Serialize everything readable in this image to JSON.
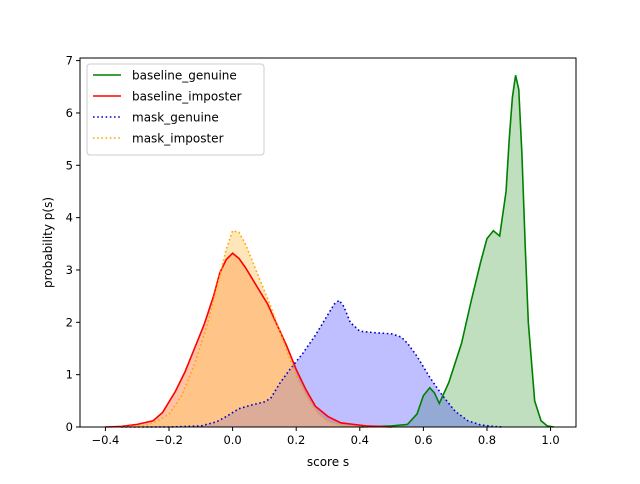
{
  "chart_data": {
    "type": "area",
    "title": "",
    "xlabel": "score s",
    "ylabel": "probability p(s)",
    "xlim": [
      -0.48,
      1.08
    ],
    "ylim": [
      0,
      7.05
    ],
    "xticks": [
      -0.4,
      -0.2,
      0.0,
      0.2,
      0.4,
      0.6,
      0.8,
      1.0
    ],
    "xtick_labels": [
      "−0.4",
      "−0.2",
      "0.0",
      "0.2",
      "0.4",
      "0.6",
      "0.8",
      "1.0"
    ],
    "yticks": [
      0,
      1,
      2,
      3,
      4,
      5,
      6,
      7
    ],
    "ytick_labels": [
      "0",
      "1",
      "2",
      "3",
      "4",
      "5",
      "6",
      "7"
    ],
    "grid": false,
    "legend_position": "top-left",
    "series": [
      {
        "name": "baseline_genuine",
        "color": "#008000",
        "fill": "rgba(0,128,0,0.25)",
        "line_style": "solid",
        "x": [
          0.4,
          0.5,
          0.55,
          0.58,
          0.6,
          0.62,
          0.635,
          0.65,
          0.68,
          0.72,
          0.75,
          0.78,
          0.8,
          0.82,
          0.84,
          0.86,
          0.87,
          0.88,
          0.89,
          0.9,
          0.91,
          0.92,
          0.93,
          0.95,
          0.97,
          0.99,
          1.01
        ],
        "y": [
          0.0,
          0.02,
          0.05,
          0.25,
          0.6,
          0.75,
          0.65,
          0.45,
          0.85,
          1.6,
          2.4,
          3.15,
          3.6,
          3.75,
          3.65,
          4.5,
          5.5,
          6.3,
          6.72,
          6.45,
          5.2,
          3.5,
          2.0,
          0.5,
          0.12,
          0.02,
          0.0
        ]
      },
      {
        "name": "baseline_imposter",
        "color": "#ff0000",
        "fill": "rgba(255,120,60,0.45)",
        "line_style": "solid",
        "x": [
          -0.4,
          -0.35,
          -0.3,
          -0.25,
          -0.22,
          -0.18,
          -0.15,
          -0.12,
          -0.09,
          -0.06,
          -0.04,
          -0.02,
          0.0,
          0.02,
          0.04,
          0.06,
          0.09,
          0.11,
          0.14,
          0.17,
          0.2,
          0.23,
          0.26,
          0.3,
          0.34,
          0.38,
          0.42,
          0.46,
          0.5
        ],
        "y": [
          0.0,
          0.01,
          0.05,
          0.12,
          0.28,
          0.68,
          1.05,
          1.5,
          1.95,
          2.5,
          2.95,
          3.2,
          3.32,
          3.22,
          3.05,
          2.85,
          2.55,
          2.35,
          1.95,
          1.55,
          1.1,
          0.72,
          0.4,
          0.2,
          0.08,
          0.05,
          0.02,
          0.01,
          0.0
        ]
      },
      {
        "name": "mask_genuine",
        "color": "#0000cc",
        "fill": "rgba(60,60,255,0.33)",
        "line_style": "dotted",
        "x": [
          -0.35,
          -0.2,
          -0.1,
          -0.05,
          -0.02,
          0.02,
          0.06,
          0.1,
          0.12,
          0.15,
          0.18,
          0.22,
          0.26,
          0.3,
          0.32,
          0.335,
          0.35,
          0.37,
          0.4,
          0.45,
          0.5,
          0.53,
          0.55,
          0.58,
          0.62,
          0.66,
          0.7,
          0.74,
          0.78,
          0.82,
          0.85
        ],
        "y": [
          0.0,
          0.0,
          0.02,
          0.1,
          0.2,
          0.35,
          0.42,
          0.48,
          0.55,
          0.85,
          1.1,
          1.4,
          1.75,
          2.15,
          2.35,
          2.42,
          2.3,
          2.0,
          1.83,
          1.8,
          1.78,
          1.72,
          1.6,
          1.35,
          0.95,
          0.6,
          0.3,
          0.12,
          0.04,
          0.01,
          0.0
        ]
      },
      {
        "name": "mask_imposter",
        "color": "#ffa500",
        "fill": "rgba(255,200,100,0.45)",
        "line_style": "dotted",
        "x": [
          -0.35,
          -0.28,
          -0.24,
          -0.2,
          -0.16,
          -0.12,
          -0.08,
          -0.04,
          -0.02,
          0.0,
          0.02,
          0.04,
          0.06,
          0.09,
          0.12,
          0.15,
          0.18,
          0.21,
          0.24,
          0.27,
          0.3,
          0.34,
          0.38,
          0.42
        ],
        "y": [
          0.0,
          0.03,
          0.1,
          0.25,
          0.6,
          1.2,
          1.95,
          2.9,
          3.4,
          3.75,
          3.72,
          3.5,
          3.2,
          2.75,
          2.3,
          1.8,
          1.3,
          0.85,
          0.5,
          0.25,
          0.1,
          0.03,
          0.01,
          0.0
        ]
      }
    ]
  }
}
